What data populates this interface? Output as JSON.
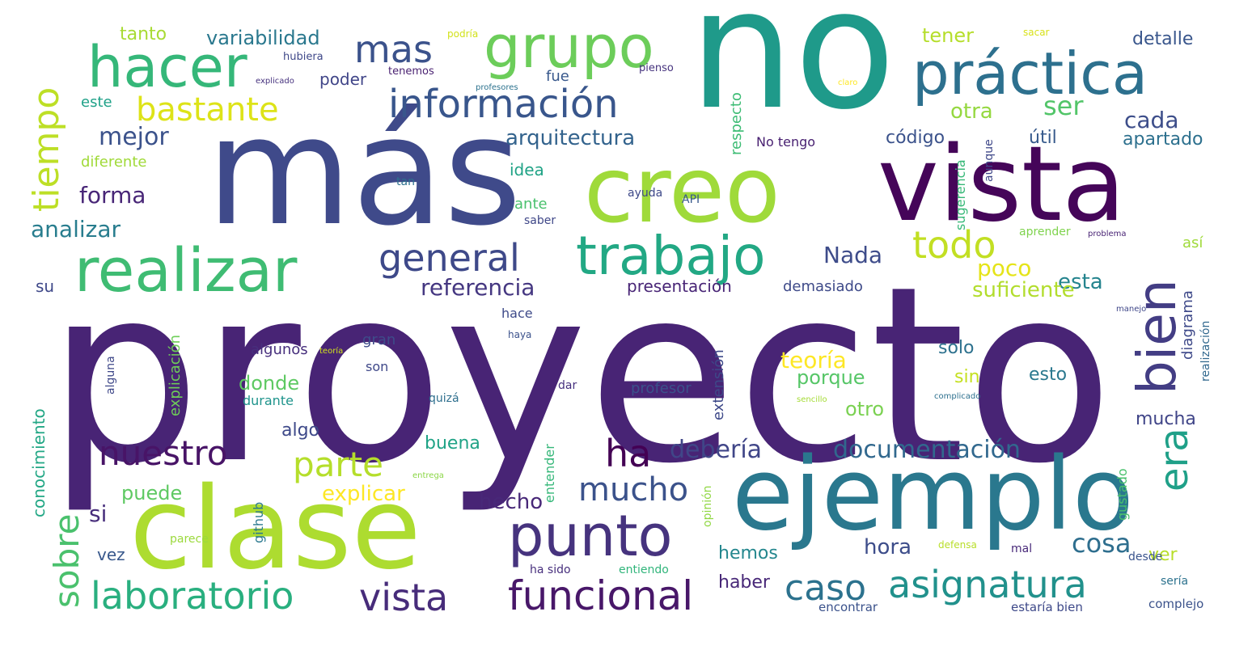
{
  "words": [
    {
      "text": "proyecto",
      "color": "#482475"
    },
    {
      "text": "no",
      "color": "#1f9a8a"
    },
    {
      "text": "más",
      "color": "#3f4a8a"
    },
    {
      "text": "creo",
      "color": "#9fda3a"
    },
    {
      "text": "vista",
      "color": "#450559"
    },
    {
      "text": "ejemplo",
      "color": "#2a788e"
    },
    {
      "text": "clase",
      "color": "#addc30"
    },
    {
      "text": "hacer",
      "color": "#35b779"
    },
    {
      "text": "grupo",
      "color": "#6ccd5a"
    },
    {
      "text": "práctica",
      "color": "#2d708e"
    },
    {
      "text": "realizar",
      "color": "#3fbc73"
    },
    {
      "text": "trabajo",
      "color": "#22a884"
    },
    {
      "text": "información",
      "color": "#39568c"
    },
    {
      "text": "bastante",
      "color": "#dde318"
    },
    {
      "text": "mas",
      "color": "#3b528b"
    },
    {
      "text": "general",
      "color": "#3e4989"
    },
    {
      "text": "punto",
      "color": "#46337e"
    },
    {
      "text": "funcional",
      "color": "#481769"
    },
    {
      "text": "vista",
      "color": "#472c7a"
    },
    {
      "text": "laboratorio",
      "color": "#29af7f"
    },
    {
      "text": "asignatura",
      "color": "#21918c"
    },
    {
      "text": "caso",
      "color": "#2c728e"
    },
    {
      "text": "bien",
      "color": "#433d84"
    },
    {
      "text": "todo",
      "color": "#c2df23"
    },
    {
      "text": "era",
      "color": "#1fa088"
    },
    {
      "text": "tiempo",
      "color": "#bddf26"
    },
    {
      "text": "ha",
      "color": "#440154"
    },
    {
      "text": "mucho",
      "color": "#3b528b"
    },
    {
      "text": "nuestro",
      "color": "#481467"
    },
    {
      "text": "parte",
      "color": "#b5de2b"
    },
    {
      "text": "sobre",
      "color": "#4ac16d"
    },
    {
      "text": "debería",
      "color": "#404688"
    },
    {
      "text": "documentación",
      "color": "#31688e"
    },
    {
      "text": "referencia",
      "color": "#453781"
    },
    {
      "text": "Nada",
      "color": "#3e4c8a"
    },
    {
      "text": "poco",
      "color": "#e5e419"
    },
    {
      "text": "esta",
      "color": "#25848e"
    },
    {
      "text": "suficiente",
      "color": "#b2dd2d"
    },
    {
      "text": "ser",
      "color": "#52c569"
    },
    {
      "text": "otra",
      "color": "#95d840"
    },
    {
      "text": "cada",
      "color": "#3d4e8a"
    },
    {
      "text": "arquitectura",
      "color": "#33638d"
    },
    {
      "text": "mejor",
      "color": "#3b528b"
    },
    {
      "text": "forma",
      "color": "#482677"
    },
    {
      "text": "analizar",
      "color": "#287d8e"
    },
    {
      "text": "variabilidad",
      "color": "#2a788e"
    },
    {
      "text": "tanto",
      "color": "#a8db34"
    },
    {
      "text": "tener",
      "color": "#b5de2b"
    },
    {
      "text": "detalle",
      "color": "#39568c"
    },
    {
      "text": "código",
      "color": "#3b528b"
    },
    {
      "text": "útil",
      "color": "#375a8c"
    },
    {
      "text": "apartado",
      "color": "#2d708e"
    },
    {
      "text": "No tengo",
      "color": "#482071"
    },
    {
      "text": "teoría",
      "color": "#fde725"
    },
    {
      "text": "porque",
      "color": "#56c667"
    },
    {
      "text": "donde",
      "color": "#5ec962"
    },
    {
      "text": "algo",
      "color": "#3e4989"
    },
    {
      "text": "buena",
      "color": "#20a386"
    },
    {
      "text": "explicar",
      "color": "#fde725"
    },
    {
      "text": "puede",
      "color": "#5ec962"
    },
    {
      "text": "si",
      "color": "#472d7b"
    },
    {
      "text": "hecho",
      "color": "#482878"
    },
    {
      "text": "cosa",
      "color": "#2e6e8e"
    },
    {
      "text": "hora",
      "color": "#3d4d8a"
    },
    {
      "text": "ver",
      "color": "#b8de29"
    },
    {
      "text": "hemos",
      "color": "#24878e"
    },
    {
      "text": "haber",
      "color": "#482878"
    },
    {
      "text": "vez",
      "color": "#38588c"
    },
    {
      "text": "mucha",
      "color": "#404588"
    },
    {
      "text": "otro",
      "color": "#7ad151"
    },
    {
      "text": "esto",
      "color": "#2a788e"
    },
    {
      "text": "sin",
      "color": "#c5e021"
    },
    {
      "text": "solo",
      "color": "#2d718e"
    },
    {
      "text": "algunos",
      "color": "#472f7d"
    },
    {
      "text": "gran",
      "color": "#3e4c8a"
    },
    {
      "text": "son",
      "color": "#3f4889"
    },
    {
      "text": "profesor",
      "color": "#3b518b"
    },
    {
      "text": "durante",
      "color": "#1f948c"
    },
    {
      "text": "presentación",
      "color": "#482576"
    },
    {
      "text": "demasiado",
      "color": "#3e4a89"
    },
    {
      "text": "idea",
      "color": "#20a386"
    },
    {
      "text": "ante",
      "color": "#4ac16d"
    },
    {
      "text": "saber",
      "color": "#3f4788"
    },
    {
      "text": "fue",
      "color": "#38588c"
    },
    {
      "text": "poder",
      "color": "#404588"
    },
    {
      "text": "este",
      "color": "#1fa188"
    },
    {
      "text": "diferente",
      "color": "#a0da39"
    },
    {
      "text": "su",
      "color": "#3f4889"
    },
    {
      "text": "hace",
      "color": "#3e4a89"
    },
    {
      "text": "encontrar",
      "color": "#3b528b"
    },
    {
      "text": "estaría bien",
      "color": "#3e4989"
    },
    {
      "text": "complejo",
      "color": "#3b528b"
    },
    {
      "text": "ha sido",
      "color": "#472f7d"
    },
    {
      "text": "entiendo",
      "color": "#31b57b"
    },
    {
      "text": "parece",
      "color": "#9bd93c"
    },
    {
      "text": "aprender",
      "color": "#7fd34e"
    },
    {
      "text": "ayuda",
      "color": "#3e4989"
    },
    {
      "text": "API",
      "color": "#38598c"
    },
    {
      "text": "dar",
      "color": "#46307e"
    },
    {
      "text": "mal",
      "color": "#482979"
    },
    {
      "text": "desde",
      "color": "#3a548c"
    },
    {
      "text": "defensa",
      "color": "#b8de29"
    },
    {
      "text": "sería",
      "color": "#2c728e"
    },
    {
      "text": "así",
      "color": "#9fda3a"
    },
    {
      "text": "tan",
      "color": "#2d708e"
    },
    {
      "text": "pienso",
      "color": "#46337e"
    },
    {
      "text": "tenemos",
      "color": "#481f70"
    },
    {
      "text": "hubiera",
      "color": "#3f4889"
    },
    {
      "text": "podría",
      "color": "#d2e21b"
    },
    {
      "text": "sacar",
      "color": "#d8e219"
    },
    {
      "text": "haya",
      "color": "#3b518b"
    },
    {
      "text": "quizá",
      "color": "#2e6f8e"
    },
    {
      "text": "respecto",
      "color": "#3dbc74"
    },
    {
      "text": "conocimiento",
      "color": "#22a785"
    },
    {
      "text": "explicación",
      "color": "#6ece58"
    },
    {
      "text": "extensión",
      "color": "#3e4989"
    },
    {
      "text": "entender",
      "color": "#35b779"
    },
    {
      "text": "github",
      "color": "#2a788e"
    },
    {
      "text": "diagrama",
      "color": "#3e4989"
    },
    {
      "text": "sugerencia",
      "color": "#37b878"
    },
    {
      "text": "aunque",
      "color": "#3f4889"
    },
    {
      "text": "gustado",
      "color": "#4ac16d"
    },
    {
      "text": "realización",
      "color": "#31688e"
    },
    {
      "text": "opinión",
      "color": "#90d743"
    },
    {
      "text": "alguna",
      "color": "#3f4889"
    },
    {
      "text": "manejo",
      "color": "#3f4788"
    },
    {
      "text": "sencillo",
      "color": "#a5db36"
    },
    {
      "text": "complicado",
      "color": "#2d708e"
    },
    {
      "text": "problema",
      "color": "#482374"
    },
    {
      "text": "entrega",
      "color": "#8bd646"
    },
    {
      "text": "profesores",
      "color": "#2c728e"
    },
    {
      "text": "claro",
      "color": "#fde725"
    },
    {
      "text": "teoría",
      "color": "#d2e21b"
    },
    {
      "text": "explicado",
      "color": "#46327e"
    }
  ]
}
